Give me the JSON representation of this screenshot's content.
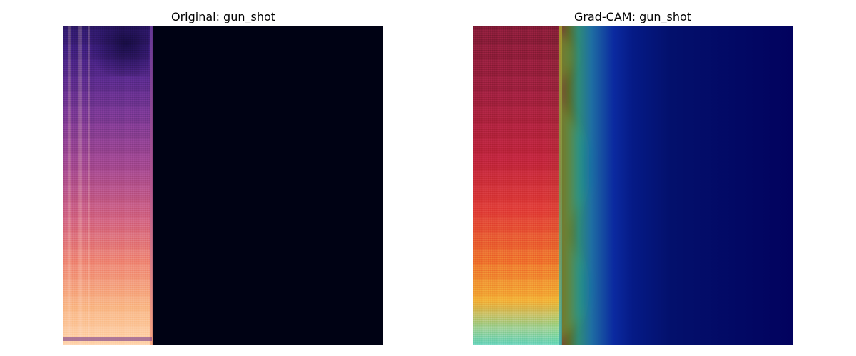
{
  "panels": {
    "left": {
      "title": "Original: gun_shot"
    },
    "right": {
      "title": "Grad-CAM: gun_shot"
    }
  }
}
